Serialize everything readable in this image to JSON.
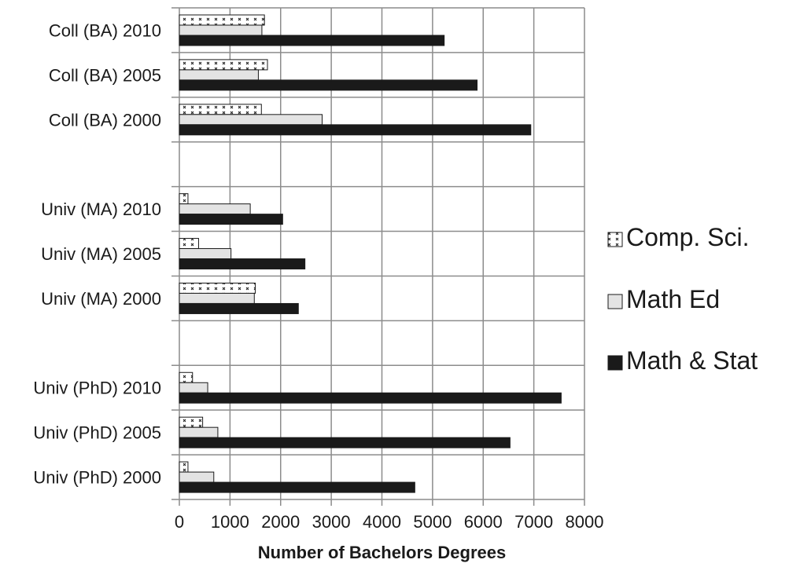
{
  "chart_data": {
    "type": "bar",
    "orientation": "horizontal",
    "xlabel": "Number of Bachelors Degrees",
    "xlim": [
      0,
      8000
    ],
    "xticks": [
      0,
      1000,
      2000,
      3000,
      4000,
      5000,
      6000,
      7000,
      8000
    ],
    "grid": true,
    "legend_position": "right",
    "categories": [
      "Coll (BA) 2010",
      "Coll (BA) 2005",
      "Coll (BA) 2000",
      "",
      "Univ (MA) 2010",
      "Univ (MA) 2005",
      "Univ (MA) 2000",
      "",
      "Univ (PhD) 2010",
      "Univ (PhD) 2005",
      "Univ (PhD) 2000"
    ],
    "series": [
      {
        "name": "Comp. Sci.",
        "style": "dotted",
        "fill": "#ffffff",
        "values": [
          1680,
          1740,
          1620,
          null,
          170,
          380,
          1500,
          null,
          260,
          460,
          170
        ]
      },
      {
        "name": "Math Ed",
        "style": "light",
        "fill": "#e3e3e3",
        "values": [
          1630,
          1560,
          2820,
          null,
          1400,
          1020,
          1480,
          null,
          560,
          760,
          680
        ]
      },
      {
        "name": "Math & Stat",
        "style": "dark",
        "fill": "#1a1a1a",
        "values": [
          5230,
          5880,
          6940,
          null,
          2040,
          2480,
          2350,
          null,
          7540,
          6530,
          4650
        ]
      }
    ],
    "legend_order": [
      0,
      1,
      2
    ]
  }
}
